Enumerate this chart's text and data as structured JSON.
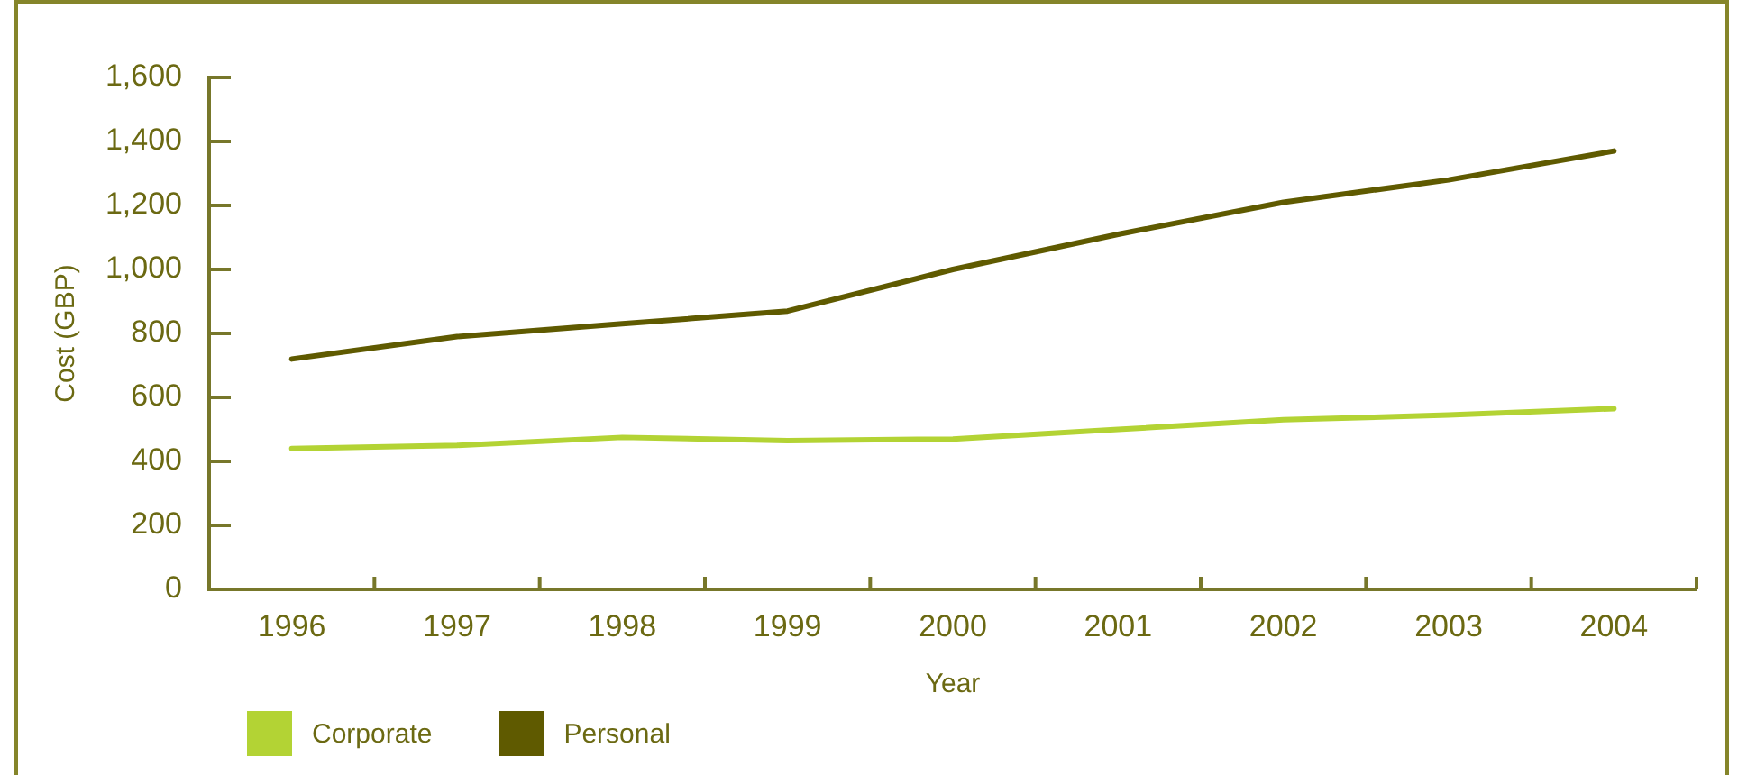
{
  "chart_data": {
    "type": "line",
    "xlabel": "Year",
    "ylabel": "Cost (GBP)",
    "categories": [
      "1996",
      "1997",
      "1998",
      "1999",
      "2000",
      "2001",
      "2002",
      "2003",
      "2004"
    ],
    "series": [
      {
        "name": "Corporate",
        "color": "#b3d334",
        "values": [
          440,
          450,
          475,
          465,
          470,
          500,
          530,
          545,
          565
        ]
      },
      {
        "name": "Personal",
        "color": "#5f5a00",
        "values": [
          720,
          790,
          830,
          870,
          1000,
          1110,
          1210,
          1280,
          1370
        ]
      }
    ],
    "ylim": [
      0,
      1600
    ],
    "yticks": [
      0,
      200,
      400,
      600,
      800,
      {
        "value": 1000,
        "label": "1,000"
      },
      {
        "value": 1200,
        "label": "1,200"
      },
      {
        "value": 1400,
        "label": "1,400"
      },
      {
        "value": 1600,
        "label": "1,600"
      }
    ],
    "legend": "bottom left"
  }
}
